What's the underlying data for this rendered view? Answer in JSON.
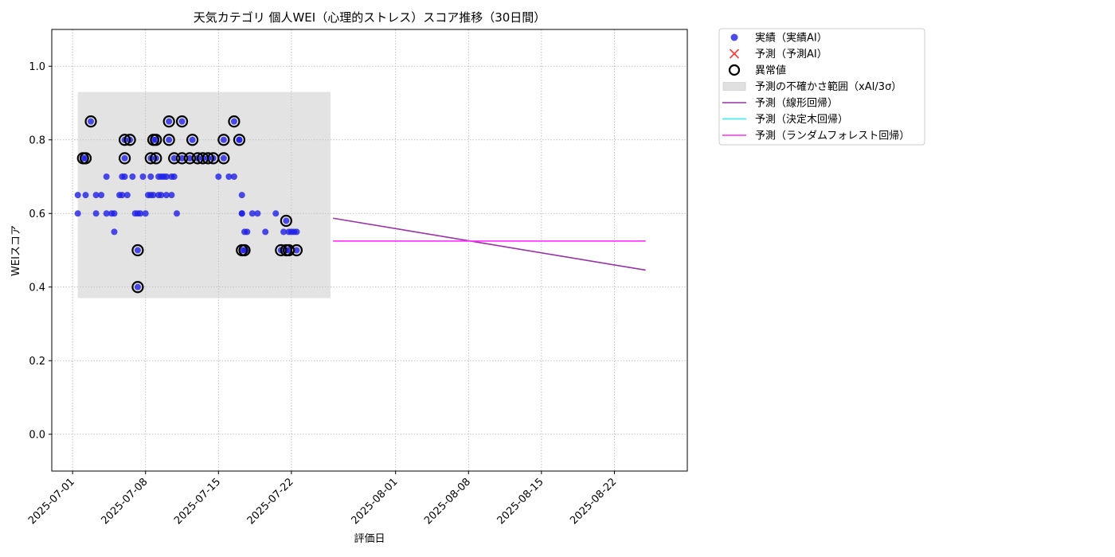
{
  "chart_data": {
    "type": "scatter",
    "title": "天気カテゴリ 個人WEI（心理的ストレス）スコア推移（30日間）",
    "xlabel": "評価日",
    "ylabel": "WEIスコア",
    "xlim": [
      "2025-06-29",
      "2025-08-29"
    ],
    "ylim": [
      -0.1,
      1.1
    ],
    "yticks": [
      0.0,
      0.2,
      0.4,
      0.6,
      0.8,
      1.0
    ],
    "xticks": [
      "2025-07-01",
      "2025-07-08",
      "2025-07-15",
      "2025-07-22",
      "2025-08-01",
      "2025-08-08",
      "2025-08-15",
      "2025-08-22"
    ],
    "grid": true,
    "legend_position": "outside-top-right",
    "legend": [
      {
        "label": "実績（実績AI）",
        "kind": "marker-circle",
        "color": "#1f1fe6"
      },
      {
        "label": "予測（予測AI）",
        "kind": "marker-x",
        "color": "#ff4040"
      },
      {
        "label": "異常値",
        "kind": "marker-ring",
        "color": "#000000"
      },
      {
        "label": "予測の不確かさ範囲（xAI/3σ）",
        "kind": "band",
        "color": "#e0e0e0"
      },
      {
        "label": "予測（線形回帰）",
        "kind": "line",
        "color": "#9b30a8"
      },
      {
        "label": "予測（決定木回帰）",
        "kind": "line",
        "color": "#2ef2f2"
      },
      {
        "label": "予測（ランダムフォレスト回帰）",
        "kind": "line",
        "color": "#ff2bff"
      }
    ],
    "uncertainty_band": {
      "x_start": "2025-07-01 12:00",
      "x_end": "2025-07-25 18:00",
      "y_low": 0.37,
      "y_high": 0.93
    },
    "series": [
      {
        "name": "実績（実績AI）",
        "type": "scatter",
        "color": "#1f1fe6",
        "points": [
          [
            "2025-07-01 12:00",
            0.65
          ],
          [
            "2025-07-01 12:00",
            0.6
          ],
          [
            "2025-07-02 00:00",
            0.75
          ],
          [
            "2025-07-02 06:00",
            0.75
          ],
          [
            "2025-07-02 06:00",
            0.65
          ],
          [
            "2025-07-02 18:00",
            0.85
          ],
          [
            "2025-07-03 06:00",
            0.6
          ],
          [
            "2025-07-03 06:00",
            0.65
          ],
          [
            "2025-07-03 18:00",
            0.65
          ],
          [
            "2025-07-04 06:00",
            0.7
          ],
          [
            "2025-07-04 06:00",
            0.6
          ],
          [
            "2025-07-04 18:00",
            0.6
          ],
          [
            "2025-07-05 00:00",
            0.6
          ],
          [
            "2025-07-05 00:00",
            0.55
          ],
          [
            "2025-07-05 12:00",
            0.65
          ],
          [
            "2025-07-05 18:00",
            0.7
          ],
          [
            "2025-07-05 18:00",
            0.65
          ],
          [
            "2025-07-06 00:00",
            0.8
          ],
          [
            "2025-07-06 00:00",
            0.75
          ],
          [
            "2025-07-06 00:00",
            0.7
          ],
          [
            "2025-07-06 06:00",
            0.65
          ],
          [
            "2025-07-06 12:00",
            0.8
          ],
          [
            "2025-07-06 18:00",
            0.7
          ],
          [
            "2025-07-07 00:00",
            0.6
          ],
          [
            "2025-07-07 06:00",
            0.5
          ],
          [
            "2025-07-07 06:00",
            0.4
          ],
          [
            "2025-07-07 06:00",
            0.6
          ],
          [
            "2025-07-07 12:00",
            0.6
          ],
          [
            "2025-07-07 18:00",
            0.7
          ],
          [
            "2025-07-08 00:00",
            0.6
          ],
          [
            "2025-07-08 06:00",
            0.65
          ],
          [
            "2025-07-08 12:00",
            0.75
          ],
          [
            "2025-07-08 12:00",
            0.65
          ],
          [
            "2025-07-08 12:00",
            0.7
          ],
          [
            "2025-07-08 18:00",
            0.8
          ],
          [
            "2025-07-08 18:00",
            0.65
          ],
          [
            "2025-07-09 00:00",
            0.75
          ],
          [
            "2025-07-09 00:00",
            0.8
          ],
          [
            "2025-07-09 06:00",
            0.7
          ],
          [
            "2025-07-09 06:00",
            0.65
          ],
          [
            "2025-07-09 12:00",
            0.7
          ],
          [
            "2025-07-09 12:00",
            0.65
          ],
          [
            "2025-07-09 18:00",
            0.7
          ],
          [
            "2025-07-10 00:00",
            0.7
          ],
          [
            "2025-07-10 00:00",
            0.65
          ],
          [
            "2025-07-10 06:00",
            0.85
          ],
          [
            "2025-07-10 06:00",
            0.8
          ],
          [
            "2025-07-10 12:00",
            0.7
          ],
          [
            "2025-07-10 12:00",
            0.65
          ],
          [
            "2025-07-10 18:00",
            0.75
          ],
          [
            "2025-07-10 18:00",
            0.7
          ],
          [
            "2025-07-11 00:00",
            0.6
          ],
          [
            "2025-07-11 12:00",
            0.85
          ],
          [
            "2025-07-11 12:00",
            0.75
          ],
          [
            "2025-07-12 06:00",
            0.75
          ],
          [
            "2025-07-12 12:00",
            0.8
          ],
          [
            "2025-07-13 00:00",
            0.75
          ],
          [
            "2025-07-13 12:00",
            0.75
          ],
          [
            "2025-07-14 00:00",
            0.75
          ],
          [
            "2025-07-14 12:00",
            0.75
          ],
          [
            "2025-07-15 00:00",
            0.7
          ],
          [
            "2025-07-15 12:00",
            0.8
          ],
          [
            "2025-07-15 12:00",
            0.75
          ],
          [
            "2025-07-16 00:00",
            0.7
          ],
          [
            "2025-07-16 12:00",
            0.85
          ],
          [
            "2025-07-16 12:00",
            0.7
          ],
          [
            "2025-07-17 00:00",
            0.8
          ],
          [
            "2025-07-17 00:00",
            0.8
          ],
          [
            "2025-07-17 06:00",
            0.65
          ],
          [
            "2025-07-17 06:00",
            0.6
          ],
          [
            "2025-07-17 06:00",
            0.6
          ],
          [
            "2025-07-17 06:00",
            0.5
          ],
          [
            "2025-07-17 12:00",
            0.55
          ],
          [
            "2025-07-17 12:00",
            0.5
          ],
          [
            "2025-07-17 18:00",
            0.55
          ],
          [
            "2025-07-17 18:00",
            0.5
          ],
          [
            "2025-07-18 06:00",
            0.6
          ],
          [
            "2025-07-18 18:00",
            0.6
          ],
          [
            "2025-07-19 12:00",
            0.55
          ],
          [
            "2025-07-20 12:00",
            0.6
          ],
          [
            "2025-07-21 00:00",
            0.5
          ],
          [
            "2025-07-21 06:00",
            0.55
          ],
          [
            "2025-07-21 12:00",
            0.58
          ],
          [
            "2025-07-21 12:00",
            0.5
          ],
          [
            "2025-07-21 18:00",
            0.55
          ],
          [
            "2025-07-21 18:00",
            0.5
          ],
          [
            "2025-07-22 00:00",
            0.55
          ],
          [
            "2025-07-22 06:00",
            0.55
          ],
          [
            "2025-07-22 12:00",
            0.5
          ],
          [
            "2025-07-22 12:00",
            0.55
          ]
        ]
      },
      {
        "name": "異常値",
        "type": "scatter",
        "color": "#000000",
        "points": [
          [
            "2025-07-02 00:00",
            0.75
          ],
          [
            "2025-07-02 06:00",
            0.75
          ],
          [
            "2025-07-02 18:00",
            0.85
          ],
          [
            "2025-07-06 00:00",
            0.8
          ],
          [
            "2025-07-06 00:00",
            0.75
          ],
          [
            "2025-07-06 12:00",
            0.8
          ],
          [
            "2025-07-07 06:00",
            0.5
          ],
          [
            "2025-07-07 06:00",
            0.4
          ],
          [
            "2025-07-08 12:00",
            0.75
          ],
          [
            "2025-07-08 18:00",
            0.8
          ],
          [
            "2025-07-09 00:00",
            0.75
          ],
          [
            "2025-07-09 00:00",
            0.8
          ],
          [
            "2025-07-10 06:00",
            0.85
          ],
          [
            "2025-07-10 06:00",
            0.8
          ],
          [
            "2025-07-10 18:00",
            0.75
          ],
          [
            "2025-07-11 12:00",
            0.85
          ],
          [
            "2025-07-11 12:00",
            0.75
          ],
          [
            "2025-07-12 06:00",
            0.75
          ],
          [
            "2025-07-12 12:00",
            0.8
          ],
          [
            "2025-07-13 00:00",
            0.75
          ],
          [
            "2025-07-13 12:00",
            0.75
          ],
          [
            "2025-07-14 00:00",
            0.75
          ],
          [
            "2025-07-14 12:00",
            0.75
          ],
          [
            "2025-07-15 12:00",
            0.8
          ],
          [
            "2025-07-15 12:00",
            0.75
          ],
          [
            "2025-07-16 12:00",
            0.85
          ],
          [
            "2025-07-17 00:00",
            0.8
          ],
          [
            "2025-07-17 06:00",
            0.5
          ],
          [
            "2025-07-17 12:00",
            0.5
          ],
          [
            "2025-07-21 00:00",
            0.5
          ],
          [
            "2025-07-21 12:00",
            0.58
          ],
          [
            "2025-07-21 12:00",
            0.5
          ],
          [
            "2025-07-21 18:00",
            0.5
          ],
          [
            "2025-07-22 12:00",
            0.5
          ]
        ]
      },
      {
        "name": "予測（線形回帰）",
        "type": "line",
        "color": "#9b30a8",
        "points": [
          [
            "2025-07-26 00:00",
            0.587
          ],
          [
            "2025-08-25 00:00",
            0.446
          ]
        ]
      },
      {
        "name": "予測（ランダムフォレスト回帰）",
        "type": "line",
        "color": "#ff2bff",
        "points": [
          [
            "2025-07-26 00:00",
            0.525
          ],
          [
            "2025-08-25 00:00",
            0.525
          ]
        ]
      }
    ]
  }
}
